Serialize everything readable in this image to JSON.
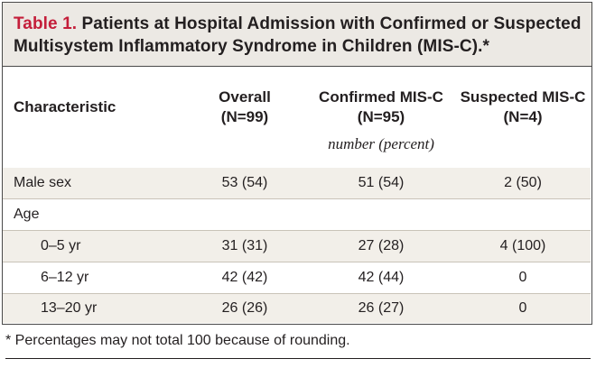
{
  "table": {
    "title_label": "Table 1.",
    "title_text": " Patients at Hospital Admission with Confirmed or Suspected Multisystem Inflammatory Syndrome in Children (MIS-C).*",
    "headers": {
      "characteristic": "Characteristic",
      "overall_line1": "Overall",
      "overall_line2": "(N=99)",
      "confirmed_line1": "Confirmed MIS-C",
      "confirmed_line2": "(N=95)",
      "suspected_line1": "Suspected MIS-C",
      "suspected_line2": "(N=4)"
    },
    "unit_note": "number (percent)",
    "rows": [
      {
        "label": "Male sex",
        "overall": "53 (54)",
        "confirmed": "51 (54)",
        "suspected": "2 (50)"
      },
      {
        "label": "Age",
        "overall": "",
        "confirmed": "",
        "suspected": ""
      },
      {
        "label": "0–5 yr",
        "overall": "31 (31)",
        "confirmed": "27 (28)",
        "suspected": "4 (100)"
      },
      {
        "label": "6–12 yr",
        "overall": "42 (42)",
        "confirmed": "42 (44)",
        "suspected": "0"
      },
      {
        "label": "13–20 yr",
        "overall": "26 (26)",
        "confirmed": "26 (27)",
        "suspected": "0"
      }
    ],
    "footnote": "* Percentages may not total 100 because of rounding."
  },
  "colors": {
    "title_label": "#c41e3a",
    "title_background": "#ece9e4",
    "row_shade": "#f2efe9"
  }
}
